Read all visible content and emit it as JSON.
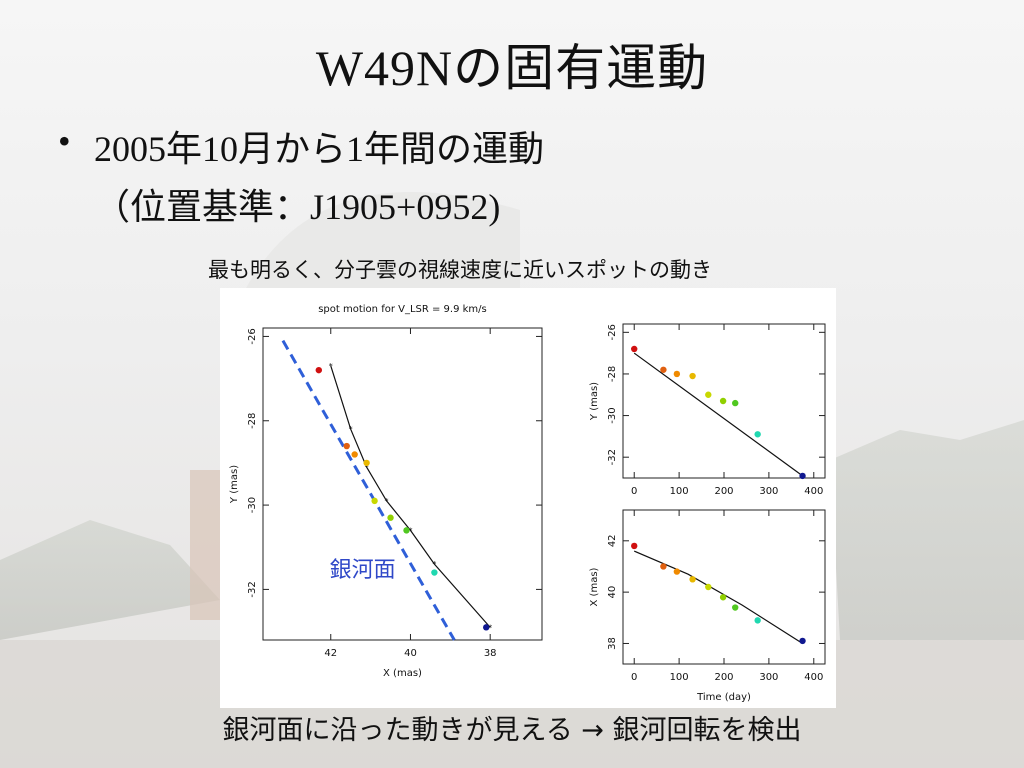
{
  "slide": {
    "title": "W49Nの固有運動",
    "bullet_mark": "•",
    "bullet_line1": "2005年10月から1年間の運動",
    "bullet_line2": "（位置基準：J1905+0952)",
    "caption": "最も明るく、分子雲の視線速度に近いスポットの動き",
    "conclusion": "銀河面に沿った動きが見える  →  銀河回転を検出",
    "colors": {
      "title": "#111111",
      "plane_line": "#2f5fd8",
      "plane_label": "#2f48c8"
    }
  },
  "chart_data": [
    {
      "type": "scatter",
      "id": "sky",
      "title": "spot motion for V_LSR =       9.9  km/s",
      "xlabel": "X (mas)",
      "ylabel": "Y (mas)",
      "xlim": [
        43.7,
        36.7
      ],
      "ylim": [
        -33.2,
        -25.8
      ],
      "xticks": [
        42,
        40,
        38
      ],
      "yticks": [
        -26,
        -28,
        -30,
        -32
      ],
      "points": [
        {
          "x": 42.3,
          "y": -26.8,
          "color": "#d01010"
        },
        {
          "x": 41.6,
          "y": -28.6,
          "color": "#e06010"
        },
        {
          "x": 41.4,
          "y": -28.8,
          "color": "#f08a00"
        },
        {
          "x": 41.1,
          "y": -29.0,
          "color": "#e8b800"
        },
        {
          "x": 40.9,
          "y": -29.9,
          "color": "#c8d800"
        },
        {
          "x": 40.5,
          "y": -30.3,
          "color": "#90d000"
        },
        {
          "x": 40.1,
          "y": -30.6,
          "color": "#50c820"
        },
        {
          "x": 39.4,
          "y": -31.6,
          "color": "#20d8b0"
        },
        {
          "x": 38.1,
          "y": -32.9,
          "color": "#101890"
        }
      ],
      "fit_line": [
        {
          "x": 42.0,
          "y": -26.7
        },
        {
          "x": 41.5,
          "y": -28.2
        },
        {
          "x": 41.1,
          "y": -29.1
        },
        {
          "x": 40.6,
          "y": -29.9
        },
        {
          "x": 40.0,
          "y": -30.6
        },
        {
          "x": 39.4,
          "y": -31.4
        },
        {
          "x": 38.0,
          "y": -32.9
        }
      ],
      "galactic_plane": [
        {
          "x": 43.2,
          "y": -26.1
        },
        {
          "x": 38.9,
          "y": -33.2
        }
      ],
      "plane_label": "銀河面"
    },
    {
      "type": "scatter",
      "id": "y-vs-time",
      "xlabel": "",
      "ylabel": "Y (mas)",
      "xlim": [
        -25,
        425
      ],
      "ylim": [
        -33.0,
        -25.6
      ],
      "xticks": [
        0,
        100,
        200,
        300,
        400
      ],
      "yticks": [
        -26,
        -28,
        -30,
        -32
      ],
      "points": [
        {
          "x": 0,
          "y": -26.8,
          "color": "#d01010"
        },
        {
          "x": 65,
          "y": -27.8,
          "color": "#e06010"
        },
        {
          "x": 95,
          "y": -28.0,
          "color": "#f08a00"
        },
        {
          "x": 130,
          "y": -28.1,
          "color": "#e8b800"
        },
        {
          "x": 165,
          "y": -29.0,
          "color": "#c8d800"
        },
        {
          "x": 198,
          "y": -29.3,
          "color": "#90d000"
        },
        {
          "x": 225,
          "y": -29.4,
          "color": "#50c820"
        },
        {
          "x": 275,
          "y": -30.9,
          "color": "#20d8b0"
        },
        {
          "x": 375,
          "y": -32.9,
          "color": "#101890"
        }
      ],
      "fit_line": [
        {
          "x": 0,
          "y": -27.0
        },
        {
          "x": 375,
          "y": -32.9
        }
      ]
    },
    {
      "type": "scatter",
      "id": "x-vs-time",
      "xlabel": "Time (day)",
      "ylabel": "X (mas)",
      "xlim": [
        -25,
        425
      ],
      "ylim": [
        37.2,
        43.2
      ],
      "xticks": [
        0,
        100,
        200,
        300,
        400
      ],
      "yticks": [
        38,
        40,
        42
      ],
      "points": [
        {
          "x": 0,
          "y": 41.8,
          "color": "#d01010"
        },
        {
          "x": 65,
          "y": 41.0,
          "color": "#e06010"
        },
        {
          "x": 95,
          "y": 40.8,
          "color": "#f08a00"
        },
        {
          "x": 130,
          "y": 40.5,
          "color": "#e8b800"
        },
        {
          "x": 165,
          "y": 40.2,
          "color": "#c8d800"
        },
        {
          "x": 198,
          "y": 39.8,
          "color": "#90d000"
        },
        {
          "x": 225,
          "y": 39.4,
          "color": "#50c820"
        },
        {
          "x": 275,
          "y": 38.9,
          "color": "#20d8b0"
        },
        {
          "x": 375,
          "y": 38.1,
          "color": "#101890"
        }
      ],
      "fit_line": [
        {
          "x": 0,
          "y": 41.6
        },
        {
          "x": 120,
          "y": 40.7
        },
        {
          "x": 240,
          "y": 39.5
        },
        {
          "x": 375,
          "y": 38.0
        }
      ]
    }
  ]
}
